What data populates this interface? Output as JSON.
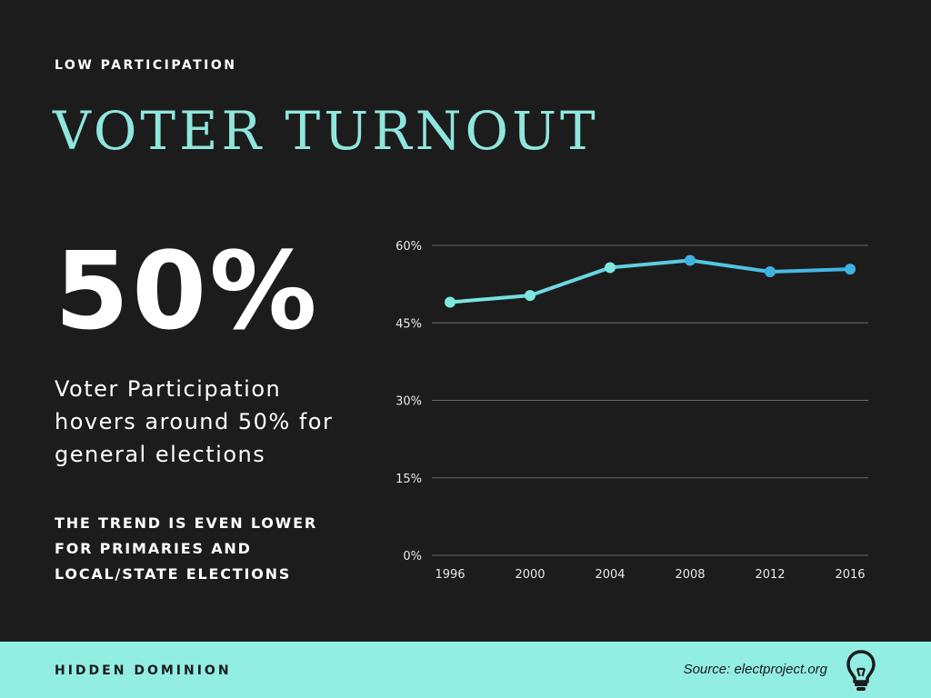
{
  "header": {
    "eyebrow": "LOW PARTICIPATION",
    "title": "VOTER TURNOUT"
  },
  "left_panel": {
    "big_stat": "50%",
    "description": "Voter Participation hovers around 50% for general elections",
    "note": "THE TREND IS EVEN LOWER FOR PRIMARIES AND LOCAL/STATE ELECTIONS"
  },
  "footer": {
    "brand": "HIDDEN DOMINION",
    "source": "Source: electproject.org",
    "icon": "lightbulb-icon"
  },
  "colors": {
    "background": "#1c1c1c",
    "accent": "#8fe6dc",
    "footer_bg": "#92ede3",
    "line_start": "#7ee8df",
    "line_end": "#3fb2e3",
    "grid": "#6a6a6a"
  },
  "chart_data": {
    "type": "line",
    "x": [
      "1996",
      "2000",
      "2004",
      "2008",
      "2012",
      "2016"
    ],
    "series": [
      {
        "values": [
          49.0,
          50.3,
          55.7,
          57.1,
          54.9,
          55.4
        ]
      }
    ],
    "ylim": [
      0,
      60
    ],
    "yticks": [
      "0%",
      "15%",
      "30%",
      "45%",
      "60%"
    ],
    "ytick_values": [
      0,
      15,
      30,
      45,
      60
    ],
    "grid": true,
    "legend": "none"
  }
}
